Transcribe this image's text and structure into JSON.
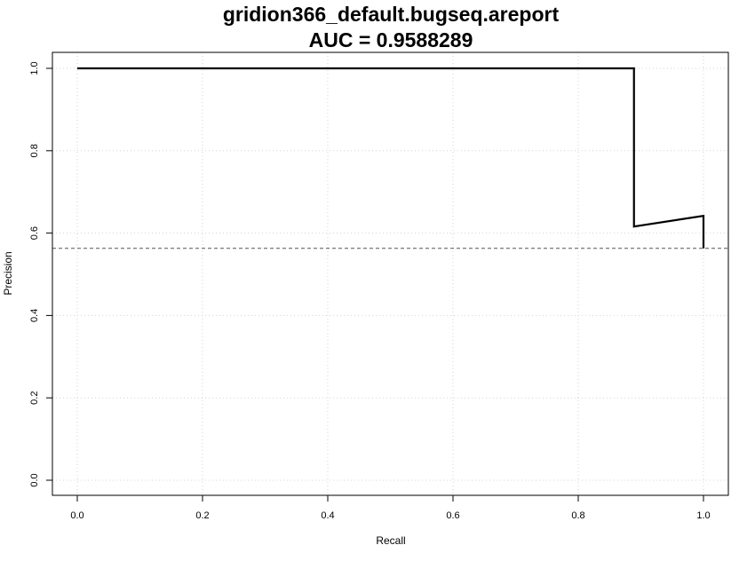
{
  "chart_data": {
    "type": "line",
    "title": "gridion366_default.bugseq.areport",
    "subtitle": "AUC = 0.9588289",
    "xlabel": "Recall",
    "ylabel": "Precision",
    "xlim": [
      0,
      1
    ],
    "ylim": [
      0,
      1
    ],
    "x_ticks": [
      "0.0",
      "0.2",
      "0.4",
      "0.6",
      "0.8",
      "1.0"
    ],
    "y_ticks": [
      "0.0",
      "0.2",
      "0.4",
      "0.6",
      "0.8",
      "1.0"
    ],
    "grid": true,
    "series": [
      {
        "color": "#000000",
        "x": [
          0.0,
          0.889,
          0.889,
          1.0,
          1.0
        ],
        "y": [
          1.0,
          1.0,
          0.616,
          0.642,
          0.563
        ]
      }
    ],
    "baseline": {
      "y": 0.563,
      "style": "dashed",
      "color": "#555555"
    }
  }
}
